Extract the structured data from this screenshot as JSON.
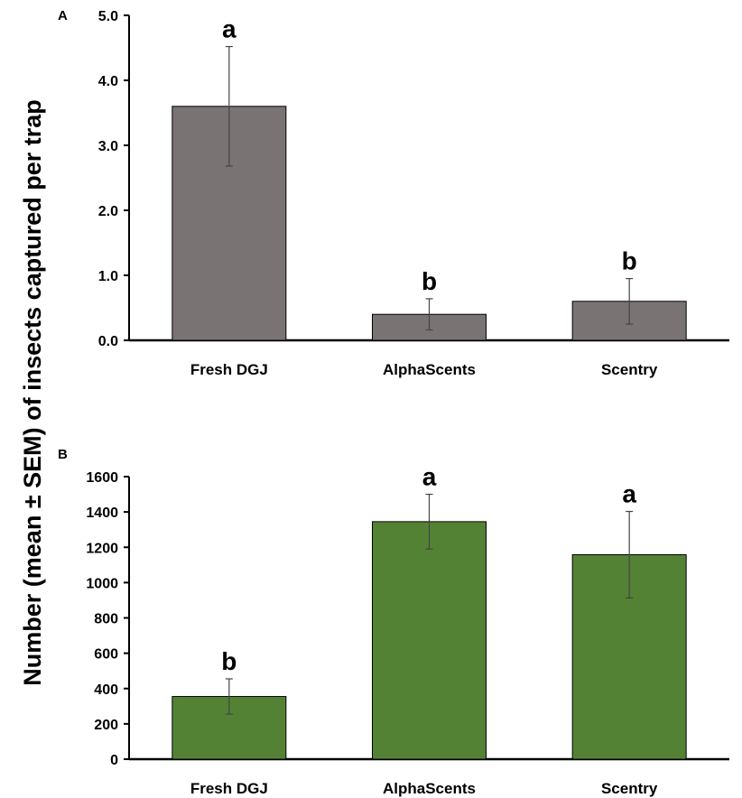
{
  "figure": {
    "ylabel": "Number (mean ± SEM) of insects captured per trap"
  },
  "chart_data": [
    {
      "panel": "A",
      "type": "bar",
      "categories": [
        "Fresh DGJ",
        "AlphaScents",
        "Scentry"
      ],
      "values": [
        3.6,
        0.4,
        0.6
      ],
      "errors": [
        0.92,
        0.24,
        0.35
      ],
      "letters": [
        "a",
        "b",
        "b"
      ],
      "ylim": [
        0,
        5.0
      ],
      "yticks": [
        "0.0",
        "1.0",
        "2.0",
        "3.0",
        "4.0",
        "5.0"
      ],
      "bar_color": "#7a7373",
      "grid": false
    },
    {
      "panel": "B",
      "type": "bar",
      "categories": [
        "Fresh DGJ",
        "AlphaScents",
        "Scentry"
      ],
      "values": [
        355,
        1345,
        1158
      ],
      "errors": [
        100,
        155,
        245
      ],
      "letters": [
        "b",
        "a",
        "a"
      ],
      "ylim": [
        0,
        1600
      ],
      "yticks": [
        "0",
        "200",
        "400",
        "600",
        "800",
        "1000",
        "1200",
        "1400",
        "1600"
      ],
      "bar_color": "#548235",
      "grid": false
    }
  ]
}
